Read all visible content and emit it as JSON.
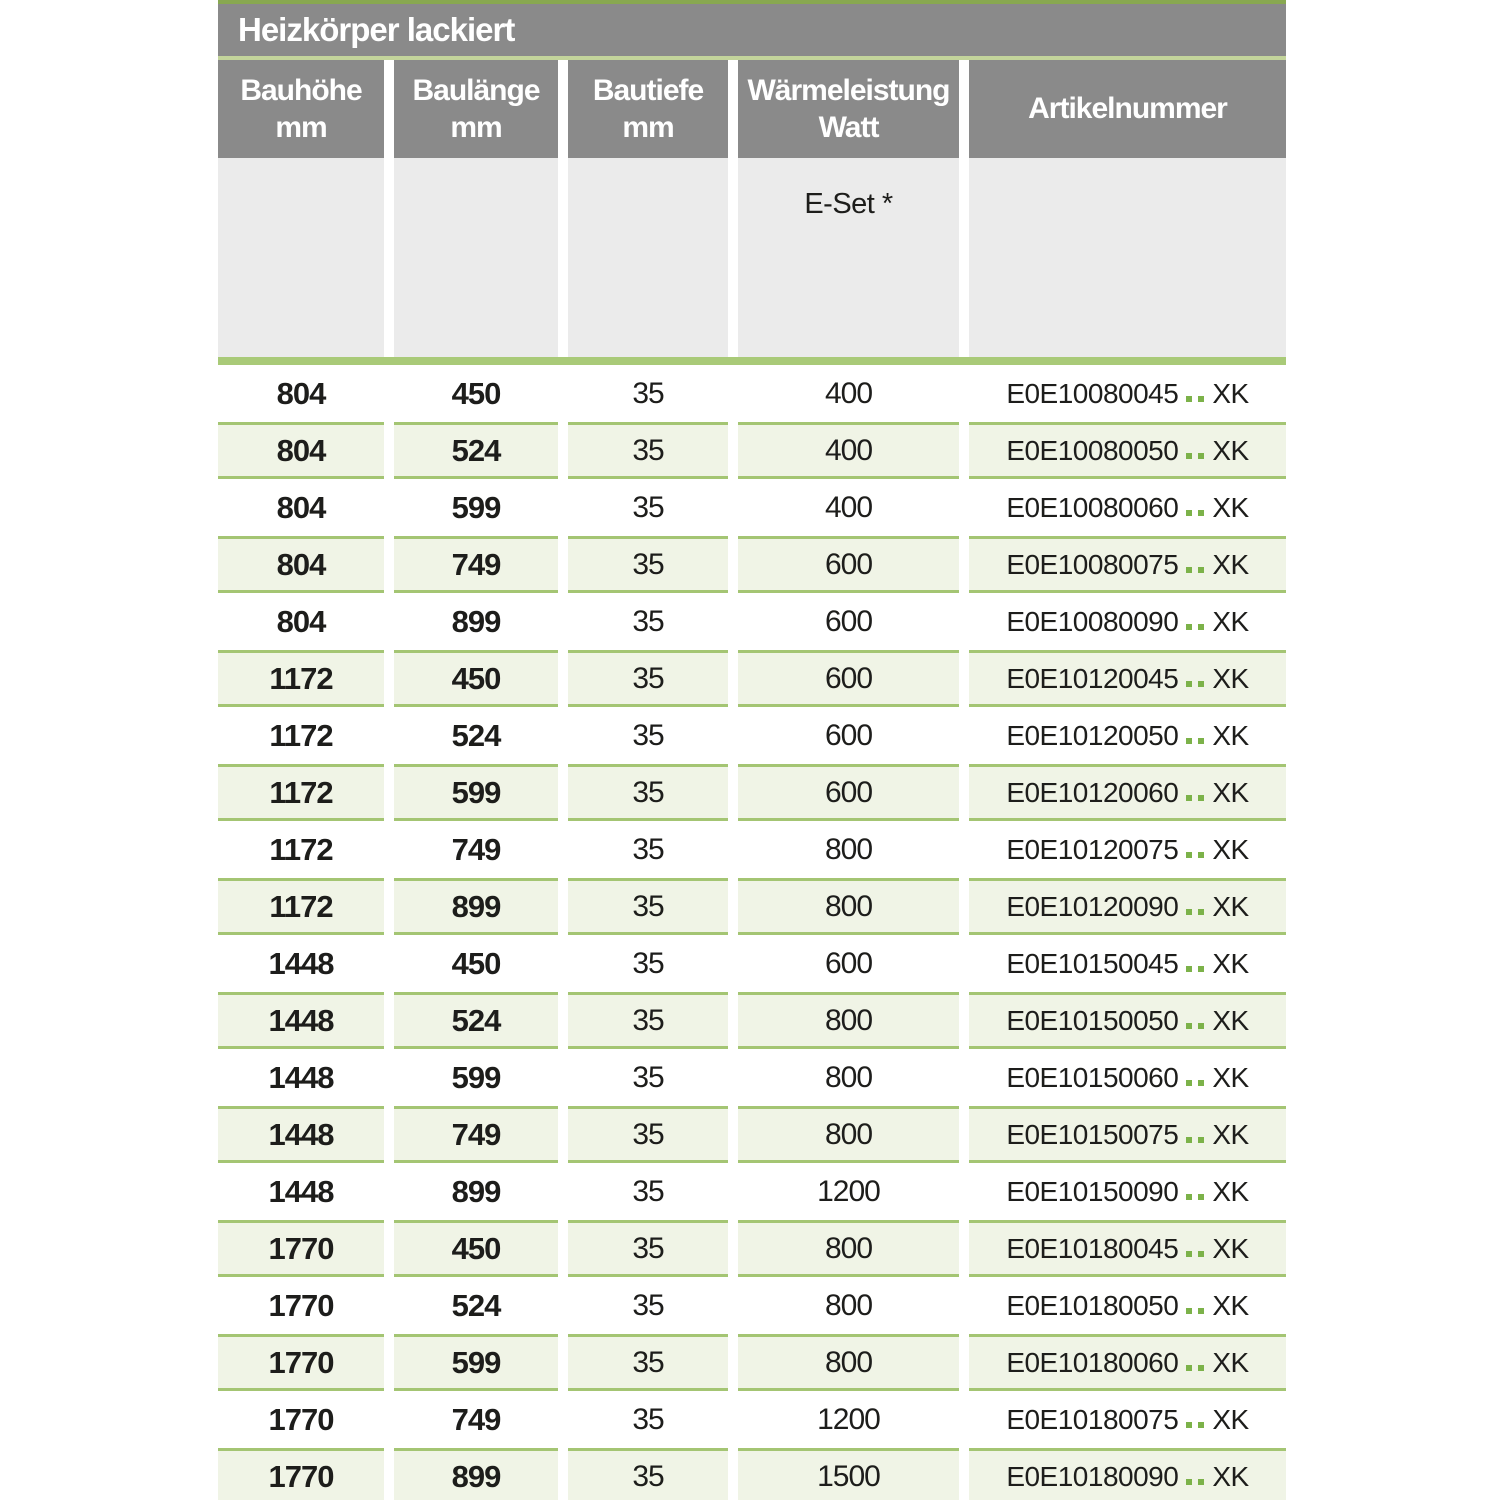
{
  "colors": {
    "accent_green": "#88a850",
    "separator_green": "#a9ca78",
    "row_border_green": "#a4c573",
    "row_bg_green": "#f0f4e6",
    "dot_green": "#7cb249",
    "header_gray": "#8a8a8a",
    "subheader_gray": "#ebebeb",
    "text_black": "#1d1d1b"
  },
  "table": {
    "title": "Heizkörper lackiert",
    "columns": [
      {
        "label": "Bauhöhe",
        "unit": "mm"
      },
      {
        "label": "Baulänge",
        "unit": "mm"
      },
      {
        "label": "Bautiefe",
        "unit": "mm"
      },
      {
        "label": "Wärmeleistung",
        "unit": "Watt"
      },
      {
        "label": "Artikelnummer",
        "unit": ""
      }
    ],
    "subheader": {
      "eset_label": "E-Set *"
    },
    "rows": [
      {
        "bauhoehe": "804",
        "baulaenge": "450",
        "bautiefe": "35",
        "watt": "400",
        "artikel_code": "E0E10080045",
        "artikel_suffix": "XK"
      },
      {
        "bauhoehe": "804",
        "baulaenge": "524",
        "bautiefe": "35",
        "watt": "400",
        "artikel_code": "E0E10080050",
        "artikel_suffix": "XK"
      },
      {
        "bauhoehe": "804",
        "baulaenge": "599",
        "bautiefe": "35",
        "watt": "400",
        "artikel_code": "E0E10080060",
        "artikel_suffix": "XK"
      },
      {
        "bauhoehe": "804",
        "baulaenge": "749",
        "bautiefe": "35",
        "watt": "600",
        "artikel_code": "E0E10080075",
        "artikel_suffix": "XK"
      },
      {
        "bauhoehe": "804",
        "baulaenge": "899",
        "bautiefe": "35",
        "watt": "600",
        "artikel_code": "E0E10080090",
        "artikel_suffix": "XK"
      },
      {
        "bauhoehe": "1172",
        "baulaenge": "450",
        "bautiefe": "35",
        "watt": "600",
        "artikel_code": "E0E10120045",
        "artikel_suffix": "XK"
      },
      {
        "bauhoehe": "1172",
        "baulaenge": "524",
        "bautiefe": "35",
        "watt": "600",
        "artikel_code": "E0E10120050",
        "artikel_suffix": "XK"
      },
      {
        "bauhoehe": "1172",
        "baulaenge": "599",
        "bautiefe": "35",
        "watt": "600",
        "artikel_code": "E0E10120060",
        "artikel_suffix": "XK"
      },
      {
        "bauhoehe": "1172",
        "baulaenge": "749",
        "bautiefe": "35",
        "watt": "800",
        "artikel_code": "E0E10120075",
        "artikel_suffix": "XK"
      },
      {
        "bauhoehe": "1172",
        "baulaenge": "899",
        "bautiefe": "35",
        "watt": "800",
        "artikel_code": "E0E10120090",
        "artikel_suffix": "XK"
      },
      {
        "bauhoehe": "1448",
        "baulaenge": "450",
        "bautiefe": "35",
        "watt": "600",
        "artikel_code": "E0E10150045",
        "artikel_suffix": "XK"
      },
      {
        "bauhoehe": "1448",
        "baulaenge": "524",
        "bautiefe": "35",
        "watt": "800",
        "artikel_code": "E0E10150050",
        "artikel_suffix": "XK"
      },
      {
        "bauhoehe": "1448",
        "baulaenge": "599",
        "bautiefe": "35",
        "watt": "800",
        "artikel_code": "E0E10150060",
        "artikel_suffix": "XK"
      },
      {
        "bauhoehe": "1448",
        "baulaenge": "749",
        "bautiefe": "35",
        "watt": "800",
        "artikel_code": "E0E10150075",
        "artikel_suffix": "XK"
      },
      {
        "bauhoehe": "1448",
        "baulaenge": "899",
        "bautiefe": "35",
        "watt": "1200",
        "artikel_code": "E0E10150090",
        "artikel_suffix": "XK"
      },
      {
        "bauhoehe": "1770",
        "baulaenge": "450",
        "bautiefe": "35",
        "watt": "800",
        "artikel_code": "E0E10180045",
        "artikel_suffix": "XK"
      },
      {
        "bauhoehe": "1770",
        "baulaenge": "524",
        "bautiefe": "35",
        "watt": "800",
        "artikel_code": "E0E10180050",
        "artikel_suffix": "XK"
      },
      {
        "bauhoehe": "1770",
        "baulaenge": "599",
        "bautiefe": "35",
        "watt": "800",
        "artikel_code": "E0E10180060",
        "artikel_suffix": "XK"
      },
      {
        "bauhoehe": "1770",
        "baulaenge": "749",
        "bautiefe": "35",
        "watt": "1200",
        "artikel_code": "E0E10180075",
        "artikel_suffix": "XK"
      },
      {
        "bauhoehe": "1770",
        "baulaenge": "899",
        "bautiefe": "35",
        "watt": "1500",
        "artikel_code": "E0E10180090",
        "artikel_suffix": "XK"
      }
    ]
  }
}
